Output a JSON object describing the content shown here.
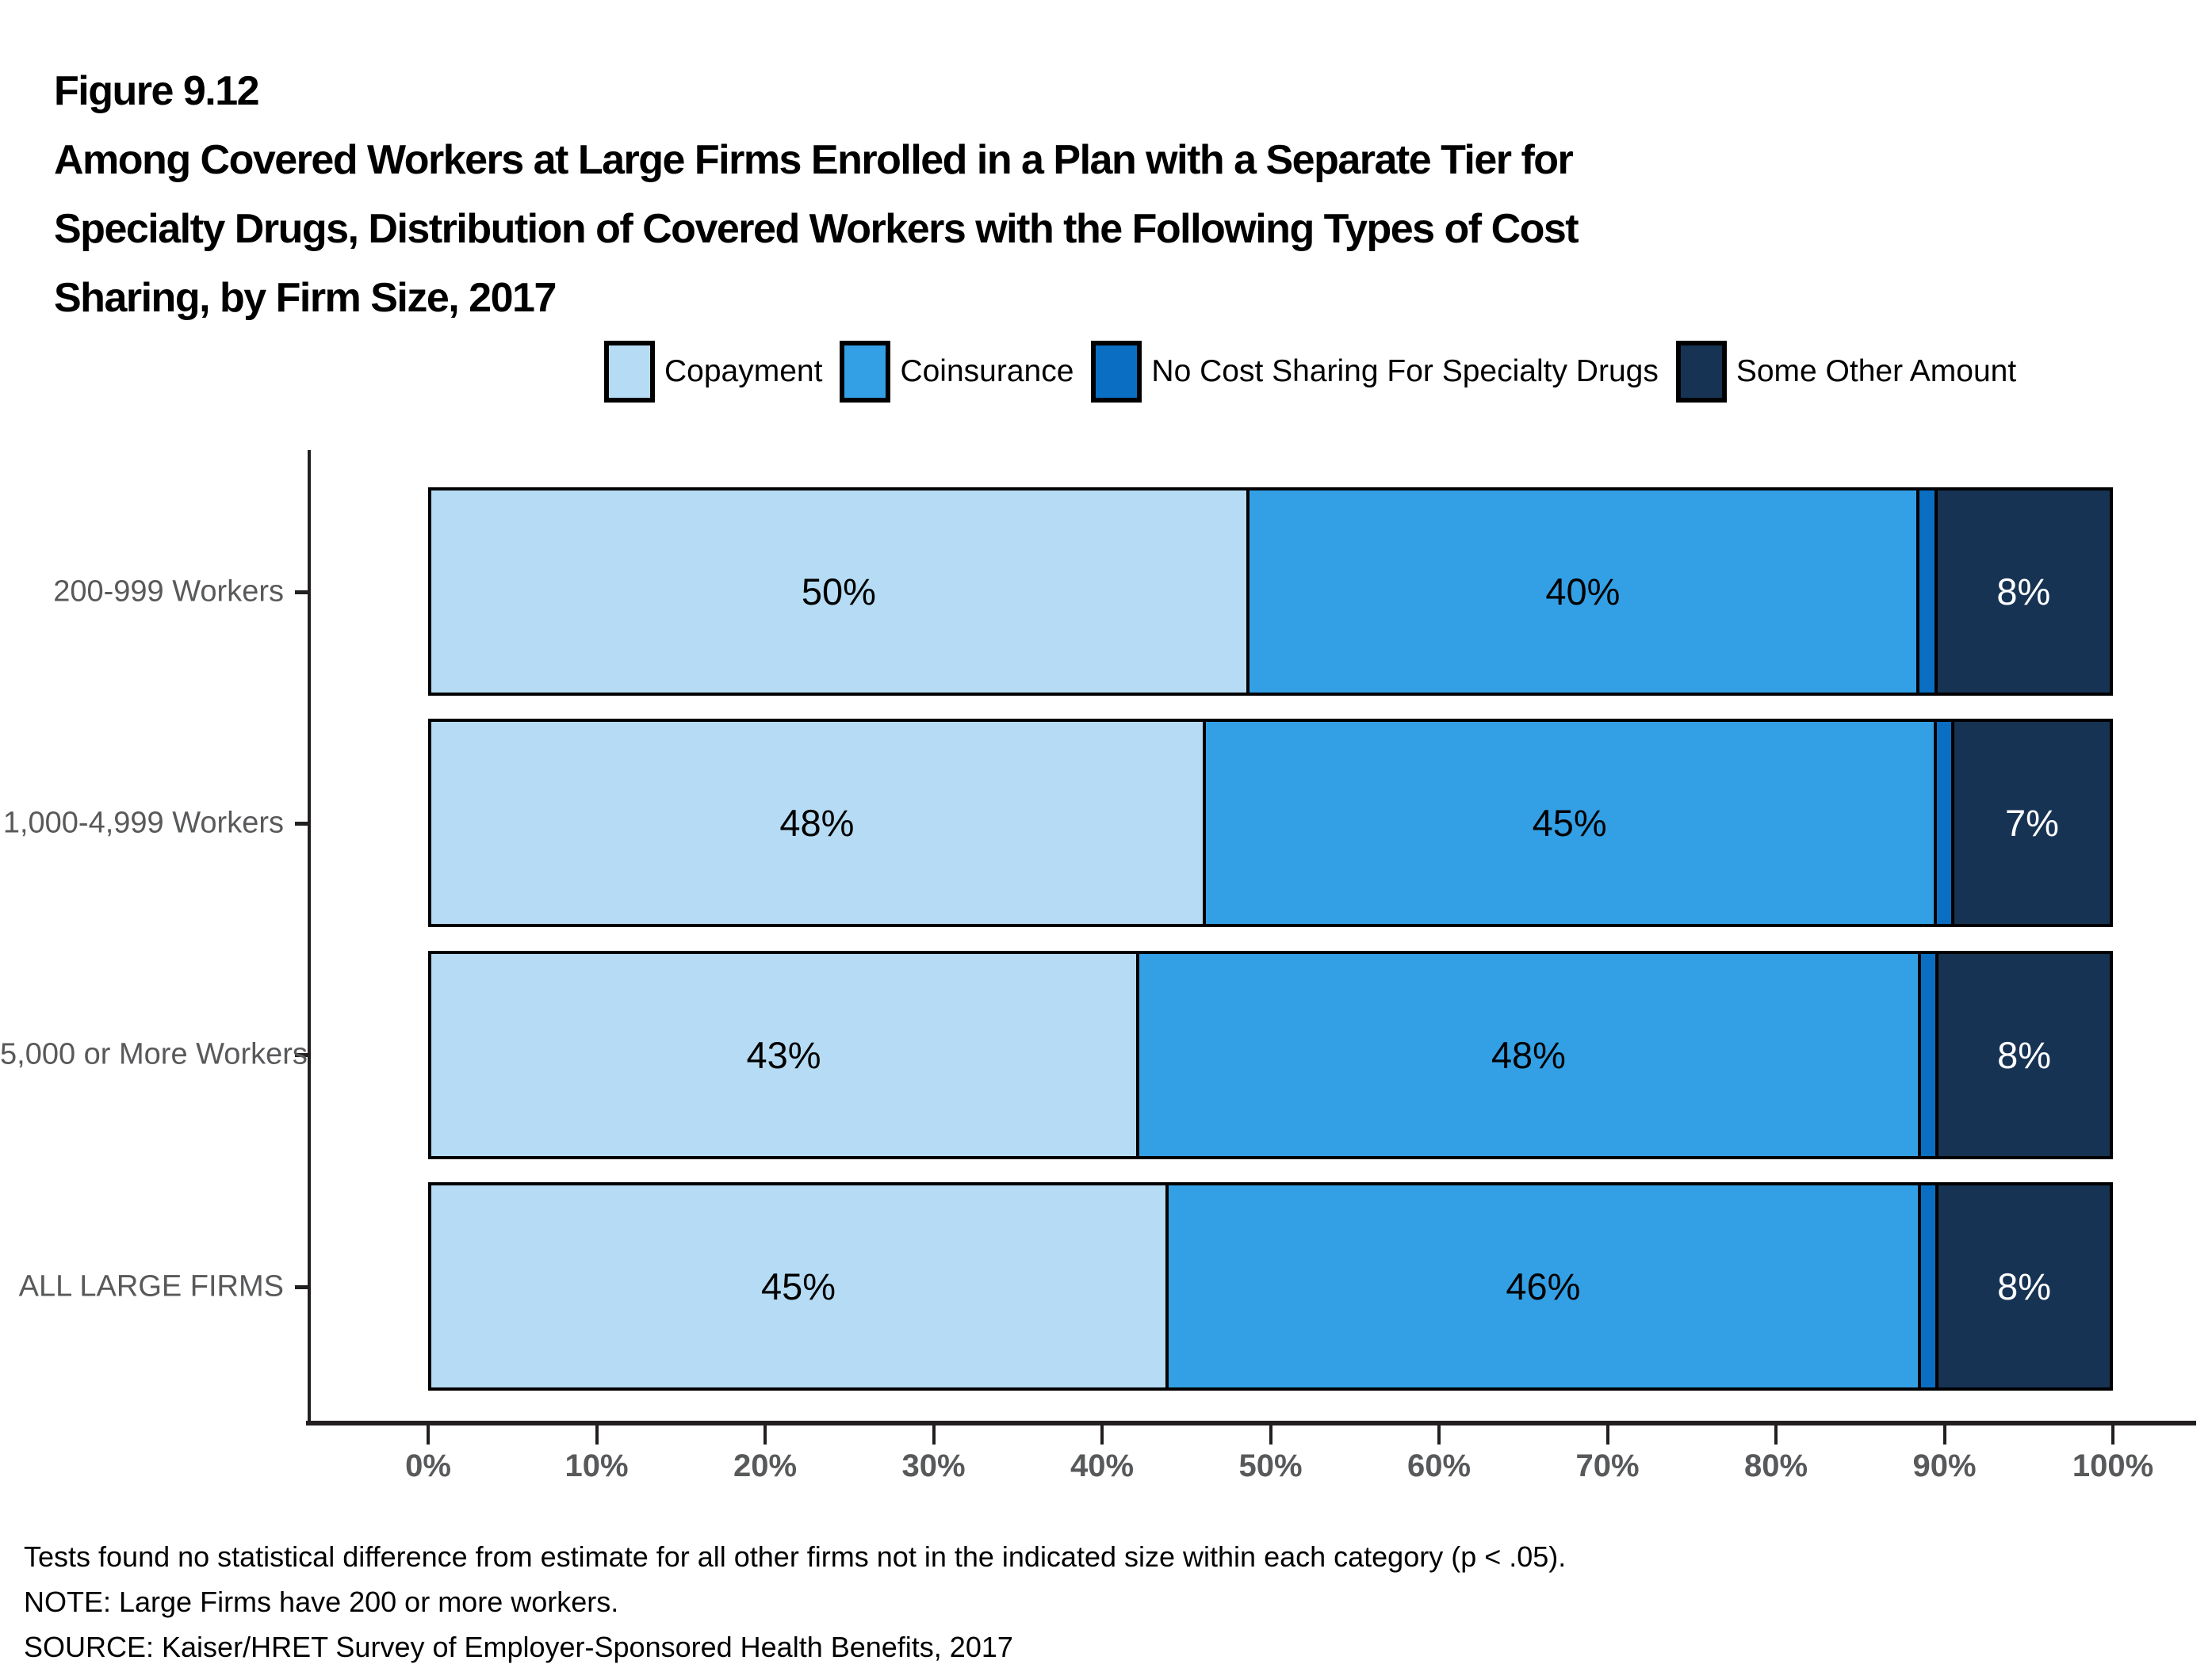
{
  "figure": {
    "number_line": "Figure 9.12",
    "title_lines": [
      "Among Covered Workers at Large Firms Enrolled in a Plan with a Separate Tier for",
      "Specialty Drugs, Distribution of Covered Workers with the Following Types of Cost",
      "Sharing, by Firm Size, 2017"
    ]
  },
  "chart_data": {
    "type": "bar",
    "orientation": "horizontal",
    "stacked": true,
    "grid": false,
    "legend_position": "top",
    "categories": [
      "200-999 Workers",
      "1,000-4,999 Workers",
      "5,000 or More Workers",
      "ALL LARGE FIRMS"
    ],
    "series": [
      {
        "name": "Copayment",
        "color": "#B5DCF4",
        "label_color": "#000000",
        "values": [
          50,
          48,
          43,
          45
        ],
        "labels": [
          "50%",
          "48%",
          "43%",
          "45%"
        ]
      },
      {
        "name": "Coinsurance",
        "color": "#33A0E5",
        "label_color": "#000000",
        "values": [
          40,
          45,
          48,
          46
        ],
        "labels": [
          "40%",
          "45%",
          "48%",
          "46%"
        ]
      },
      {
        "name": "No Cost Sharing For Specialty Drugs",
        "color": "#0A6FC2",
        "label_color": "#FFFFFF",
        "values": [
          1,
          1,
          1,
          1
        ],
        "labels": [
          "",
          "",
          "",
          ""
        ]
      },
      {
        "name": "Some Other Amount",
        "color": "#173354",
        "label_color": "#FFFFFF",
        "values": [
          8,
          7,
          8,
          8
        ],
        "labels": [
          "8%",
          "7%",
          "8%",
          "8%"
        ]
      }
    ],
    "x_ticks": [
      "0%",
      "10%",
      "20%",
      "30%",
      "40%",
      "50%",
      "60%",
      "70%",
      "80%",
      "90%",
      "100%"
    ],
    "xlim": [
      0,
      100
    ],
    "axis_color": "#231F20",
    "tick_label_color": "#58595B"
  },
  "notes": [
    "Tests found no statistical difference from estimate for all other firms not in the indicated size within each category (p < .05).",
    "NOTE: Large Firms have 200 or more workers.",
    "SOURCE: Kaiser/HRET Survey of Employer-Sponsored Health Benefits, 2017"
  ]
}
